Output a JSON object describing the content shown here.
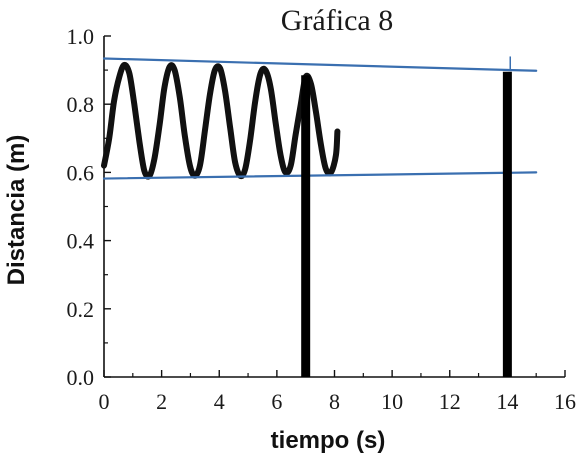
{
  "chart_data": {
    "type": "line",
    "title": "Gráfica 8",
    "xlabel": "tiempo (s)",
    "ylabel": "Distancia (m)",
    "xlim": [
      0,
      16
    ],
    "ylim": [
      0.0,
      1.0
    ],
    "x_ticks": [
      "0",
      "2",
      "4",
      "6",
      "8",
      "10",
      "12",
      "14",
      "16"
    ],
    "y_ticks": [
      "0.0",
      "0.2",
      "0.4",
      "0.6",
      "0.8",
      "1.0"
    ],
    "grid": false,
    "series": [
      {
        "kind": "oscillation",
        "color": "#111111",
        "x": [
          0.0,
          0.18,
          0.35,
          0.53,
          0.7,
          0.88,
          1.05,
          1.23,
          1.4,
          1.58,
          1.75,
          1.93,
          2.1,
          2.28,
          2.45,
          2.63,
          2.8,
          2.98,
          3.15,
          3.33,
          3.5,
          3.68,
          3.85,
          4.03,
          4.2,
          4.38,
          4.55,
          4.73,
          4.9,
          5.08,
          5.25,
          5.43,
          5.6,
          5.78,
          5.95,
          6.13,
          6.3,
          6.48,
          6.65,
          6.83,
          7.0,
          7.18,
          7.35,
          7.53,
          7.7,
          7.88,
          8.05,
          8.1
        ],
        "y": [
          0.62,
          0.7,
          0.81,
          0.88,
          0.915,
          0.89,
          0.8,
          0.69,
          0.605,
          0.59,
          0.64,
          0.74,
          0.85,
          0.91,
          0.9,
          0.82,
          0.71,
          0.62,
          0.59,
          0.62,
          0.72,
          0.83,
          0.9,
          0.905,
          0.84,
          0.73,
          0.63,
          0.59,
          0.61,
          0.7,
          0.81,
          0.89,
          0.9,
          0.85,
          0.75,
          0.65,
          0.6,
          0.62,
          0.71,
          0.8,
          0.88,
          0.86,
          0.78,
          0.68,
          0.61,
          0.6,
          0.65,
          0.72
        ]
      },
      {
        "kind": "envelope-upper",
        "color": "#3a6fb0",
        "x": [
          0,
          15
        ],
        "y": [
          0.934,
          0.898
        ]
      },
      {
        "kind": "envelope-lower",
        "color": "#3a6fb0",
        "x": [
          0,
          15
        ],
        "y": [
          0.582,
          0.6
        ]
      }
    ],
    "markers": [
      {
        "x": 7.0,
        "y_top": 0.885,
        "color": "#000000"
      },
      {
        "x": 14.0,
        "y_top": 0.895,
        "color": "#000000"
      }
    ],
    "small_tick_at": {
      "x": 14.1,
      "y": [
        0.9,
        0.94
      ],
      "color": "#3a6fb0"
    }
  }
}
